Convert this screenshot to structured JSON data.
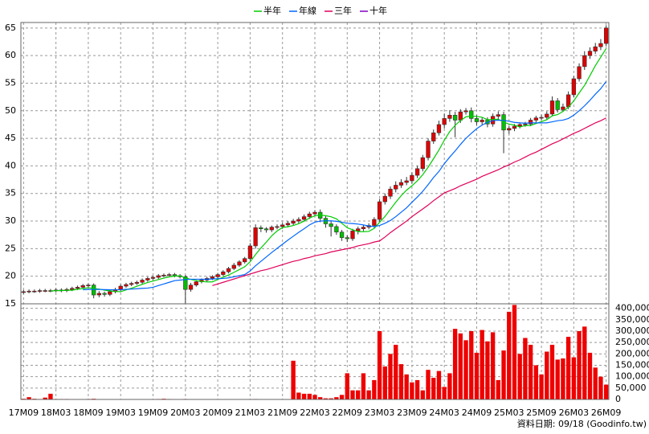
{
  "chart_data": {
    "type": "candlestick",
    "categories": [
      "17M09",
      null,
      null,
      null,
      null,
      null,
      "18M03",
      null,
      null,
      null,
      null,
      null,
      "18M09",
      null,
      null,
      null,
      null,
      null,
      "19M03",
      null,
      null,
      null,
      null,
      null,
      "19M09",
      null,
      null,
      null,
      null,
      null,
      "20M03",
      null,
      null,
      null,
      null,
      null,
      "20M09",
      null,
      null,
      null,
      null,
      null,
      "21M03",
      null,
      null,
      null,
      null,
      null,
      "21M09",
      null,
      null,
      null,
      null,
      null,
      "22M03",
      null,
      null,
      null,
      null,
      null,
      "22M09",
      null,
      null,
      null,
      null,
      null,
      "23M03",
      null,
      null,
      null,
      null,
      null,
      "23M09",
      null,
      null,
      null,
      null,
      null,
      "24M03",
      null,
      null,
      null,
      null,
      null,
      "24M09",
      null,
      null,
      null,
      null,
      null,
      "25M03",
      null,
      null,
      null,
      null,
      null,
      "25M09",
      null,
      null,
      null,
      null,
      null,
      "26M03",
      null,
      null,
      null,
      null,
      null,
      "26M09"
    ],
    "open": [
      17.1,
      17.2,
      17.3,
      17.3,
      17.4,
      17.4,
      17.4,
      17.5,
      17.4,
      17.6,
      17.8,
      18.0,
      18.3,
      18.4,
      16.6,
      16.9,
      16.7,
      17.2,
      17.6,
      18.2,
      18.5,
      18.7,
      18.9,
      19.3,
      19.6,
      19.8,
      20.1,
      20.2,
      20.3,
      20.1,
      19.9,
      17.6,
      18.4,
      19.0,
      19.3,
      19.6,
      19.9,
      20.3,
      20.8,
      21.4,
      22.0,
      22.6,
      23.2,
      25.5,
      28.8,
      28.6,
      28.4,
      28.9,
      29.0,
      29.3,
      29.6,
      30.0,
      30.3,
      30.8,
      31.3,
      31.6,
      30.5,
      29.5,
      29.0,
      28.0,
      27.0,
      26.8,
      28.2,
      28.6,
      28.9,
      29.2,
      30.3,
      33.5,
      34.5,
      35.8,
      36.5,
      37.0,
      37.3,
      38.3,
      39.5,
      41.5,
      44.5,
      46.0,
      47.5,
      48.6,
      49.2,
      48.3,
      49.8,
      50.0,
      48.6,
      48.0,
      48.3,
      47.6,
      49.0,
      49.3,
      46.5,
      46.8,
      47.2,
      47.5,
      47.6,
      48.3,
      48.7,
      48.8,
      49.4,
      51.8,
      50.2,
      50.7,
      52.9,
      55.8,
      58.0,
      60.0,
      60.8,
      61.6,
      62.2
    ],
    "high": [
      17.5,
      17.6,
      17.6,
      17.7,
      17.7,
      17.7,
      17.8,
      17.8,
      17.9,
      18.1,
      18.3,
      18.6,
      18.7,
      18.7,
      17.3,
      17.2,
      17.5,
      17.9,
      18.5,
      18.8,
      19.0,
      19.2,
      19.6,
      19.9,
      20.1,
      20.4,
      20.5,
      20.6,
      20.6,
      20.4,
      20.2,
      18.8,
      19.3,
      19.6,
      19.9,
      20.2,
      20.6,
      21.1,
      21.7,
      22.4,
      22.9,
      23.5,
      26.0,
      29.4,
      29.2,
      28.9,
      29.2,
      29.4,
      29.7,
      30.0,
      30.4,
      30.7,
      31.2,
      31.7,
      32.0,
      32.1,
      30.9,
      30.0,
      29.4,
      28.4,
      27.4,
      28.6,
      29.0,
      29.3,
      29.6,
      30.7,
      34.0,
      35.0,
      36.3,
      37.2,
      37.6,
      38.0,
      38.8,
      40.0,
      42.0,
      45.0,
      46.6,
      48.2,
      49.5,
      50.1,
      49.8,
      50.3,
      50.5,
      50.6,
      49.2,
      48.8,
      48.8,
      49.5,
      49.9,
      49.8,
      47.2,
      47.6,
      47.9,
      48.0,
      48.7,
      49.1,
      49.3,
      49.9,
      52.6,
      52.3,
      51.3,
      53.5,
      56.3,
      58.6,
      60.8,
      61.5,
      62.3,
      63.0,
      65.5
    ],
    "low": [
      16.8,
      16.9,
      17.0,
      17.0,
      17.1,
      17.1,
      17.1,
      17.1,
      17.1,
      17.3,
      17.5,
      17.7,
      18.0,
      16.0,
      16.2,
      16.3,
      16.4,
      16.9,
      17.3,
      17.9,
      18.2,
      18.4,
      18.6,
      19.0,
      19.3,
      19.5,
      19.8,
      19.9,
      19.8,
      19.6,
      15.1,
      17.2,
      18.1,
      18.7,
      19.0,
      19.3,
      19.6,
      20.0,
      20.5,
      21.1,
      21.7,
      22.3,
      22.9,
      25.0,
      28.0,
      27.9,
      28.0,
      28.5,
      28.6,
      28.9,
      29.2,
      29.6,
      29.9,
      30.4,
      30.9,
      29.8,
      28.8,
      27.2,
      27.5,
      26.4,
      26.2,
      26.4,
      27.6,
      28.2,
      28.5,
      28.8,
      29.9,
      33.0,
      34.0,
      35.2,
      36.0,
      36.5,
      36.8,
      37.8,
      39.0,
      41.0,
      44.0,
      45.5,
      46.8,
      48.0,
      45.2,
      47.8,
      49.3,
      47.9,
      47.4,
      47.5,
      47.0,
      47.1,
      48.5,
      42.3,
      45.8,
      46.3,
      46.8,
      47.1,
      47.2,
      47.9,
      48.3,
      48.4,
      49.0,
      49.7,
      49.8,
      50.3,
      52.4,
      55.3,
      57.4,
      59.4,
      60.3,
      61.0,
      61.7
    ],
    "close": [
      17.2,
      17.3,
      17.3,
      17.4,
      17.4,
      17.4,
      17.5,
      17.4,
      17.6,
      17.8,
      18.0,
      18.3,
      18.4,
      16.6,
      16.9,
      16.7,
      17.2,
      17.6,
      18.2,
      18.5,
      18.7,
      18.9,
      19.3,
      19.6,
      19.8,
      20.1,
      20.2,
      20.3,
      20.1,
      19.9,
      17.6,
      18.4,
      19.0,
      19.3,
      19.6,
      19.9,
      20.3,
      20.8,
      21.4,
      22.0,
      22.6,
      23.2,
      25.5,
      28.8,
      28.6,
      28.4,
      28.9,
      29.0,
      29.3,
      29.6,
      30.0,
      30.3,
      30.8,
      31.3,
      31.6,
      30.5,
      29.5,
      29.0,
      28.0,
      27.0,
      26.8,
      28.2,
      28.6,
      28.9,
      29.2,
      30.3,
      33.5,
      34.5,
      35.8,
      36.5,
      37.0,
      37.3,
      38.3,
      39.5,
      41.5,
      44.5,
      46.0,
      47.5,
      48.6,
      49.2,
      48.3,
      49.8,
      50.0,
      48.6,
      48.0,
      48.3,
      47.6,
      49.0,
      49.3,
      46.5,
      46.8,
      47.2,
      47.5,
      47.6,
      48.3,
      48.7,
      48.8,
      49.4,
      51.8,
      50.2,
      50.7,
      52.9,
      55.8,
      58.0,
      60.0,
      60.8,
      61.6,
      62.2,
      65.0
    ],
    "up_color": "#e00000",
    "down_color": "#00c000",
    "volume": [
      3000,
      10000,
      3000,
      2000,
      8000,
      25000,
      2000,
      2000,
      2000,
      1000,
      1000,
      1000,
      2000,
      3000,
      1000,
      1000,
      1000,
      1000,
      1000,
      1000,
      1000,
      1000,
      1000,
      1000,
      1000,
      2000,
      3000,
      2000,
      1000,
      1000,
      2000,
      1000,
      1000,
      1000,
      1000,
      1000,
      1000,
      1000,
      1000,
      1000,
      1000,
      1000,
      1000,
      2000,
      1000,
      1000,
      1000,
      1000,
      1000,
      1000,
      170000,
      30000,
      25000,
      25000,
      20000,
      10000,
      5000,
      5000,
      10000,
      20000,
      115000,
      40000,
      40000,
      115000,
      40000,
      85000,
      300000,
      145000,
      200000,
      240000,
      155000,
      110000,
      75000,
      85000,
      40000,
      130000,
      95000,
      125000,
      55000,
      115000,
      310000,
      290000,
      260000,
      300000,
      205000,
      305000,
      255000,
      295000,
      85000,
      215000,
      385000,
      415000,
      200000,
      270000,
      240000,
      150000,
      110000,
      210000,
      240000,
      175000,
      180000,
      275000,
      185000,
      300000,
      320000,
      205000,
      140000,
      100000,
      65000
    ],
    "volume_color": "#ee0000",
    "series": [
      {
        "name": "半年",
        "color": "#00cc00",
        "values": [
          null,
          null,
          null,
          null,
          null,
          17.33,
          17.38,
          17.4,
          17.43,
          17.48,
          17.62,
          17.77,
          17.92,
          17.78,
          17.67,
          17.48,
          17.35,
          17.23,
          17.2,
          17.52,
          17.82,
          18.18,
          18.53,
          18.87,
          19.13,
          19.4,
          19.65,
          19.88,
          20.02,
          20.07,
          19.7,
          19.42,
          19.22,
          19.05,
          18.97,
          18.97,
          19.42,
          19.82,
          20.22,
          20.7,
          21.2,
          21.72,
          22.62,
          23.92,
          25.12,
          26.18,
          27.33,
          28.2,
          28.83,
          28.97,
          29.2,
          29.52,
          29.98,
          30.55,
          30.97,
          31.08,
          30.97,
          30.78,
          30.4,
          29.6,
          28.8,
          28.42,
          28.1,
          28.08,
          28.12,
          28.67,
          29.78,
          30.83,
          32.13,
          33.42,
          34.6,
          35.6,
          36.4,
          37.3,
          38.4,
          39.77,
          41.3,
          42.88,
          44.67,
          46.22,
          47.35,
          48.23,
          48.9,
          49.05,
          48.98,
          48.82,
          48.38,
          48.42,
          48.47,
          47.95,
          47.58,
          47.4,
          47.05,
          47.32,
          47.33,
          47.68,
          48.02,
          48.38,
          49.08,
          49.3,
          49.88,
          50.63,
          51.8,
          53.23,
          54.6,
          56.37,
          58.18,
          59.73,
          61.27
        ]
      },
      {
        "name": "年線",
        "color": "#0066ff",
        "values": [
          null,
          null,
          null,
          null,
          null,
          null,
          null,
          null,
          null,
          null,
          null,
          17.55,
          17.6,
          17.6,
          17.6,
          17.57,
          17.55,
          17.52,
          17.56,
          17.62,
          17.67,
          17.73,
          17.8,
          17.85,
          18.0,
          18.3,
          18.6,
          18.9,
          19.2,
          19.3,
          19.4,
          19.45,
          19.45,
          19.45,
          19.45,
          19.5,
          19.55,
          19.6,
          19.7,
          19.9,
          20.1,
          20.3,
          20.95,
          21.9,
          22.7,
          23.5,
          24.3,
          25.05,
          25.8,
          26.55,
          27.25,
          27.95,
          28.6,
          29.3,
          29.8,
          30.0,
          30.05,
          30.05,
          29.95,
          29.8,
          29.6,
          29.55,
          29.45,
          29.3,
          29.1,
          29.0,
          29.2,
          29.6,
          30.1,
          30.8,
          31.6,
          32.4,
          33.4,
          34.35,
          35.4,
          36.6,
          37.9,
          39.0,
          40.4,
          41.6,
          42.7,
          43.9,
          45.0,
          45.9,
          46.75,
          47.4,
          47.9,
          48.2,
          48.3,
          48.25,
          48.1,
          47.9,
          47.8,
          47.75,
          47.8,
          47.8,
          47.8,
          47.8,
          48.0,
          48.2,
          48.3,
          48.6,
          49.2,
          50.0,
          50.9,
          51.9,
          53.0,
          54.0,
          55.3
        ]
      },
      {
        "name": "三年",
        "color": "#e0005a",
        "values": [
          null,
          null,
          null,
          null,
          null,
          null,
          null,
          null,
          null,
          null,
          null,
          null,
          null,
          null,
          null,
          null,
          null,
          null,
          null,
          null,
          null,
          null,
          null,
          null,
          null,
          null,
          null,
          null,
          null,
          null,
          null,
          null,
          null,
          null,
          null,
          18.3,
          18.6,
          18.9,
          19.2,
          19.5,
          19.8,
          20.1,
          20.4,
          20.7,
          21.0,
          21.2,
          21.5,
          21.8,
          22.1,
          22.4,
          22.7,
          22.9,
          23.2,
          23.4,
          23.7,
          23.9,
          24.1,
          24.4,
          24.6,
          24.8,
          25.0,
          25.2,
          25.5,
          25.7,
          25.9,
          26.2,
          26.4,
          27.1,
          27.9,
          28.6,
          29.3,
          30.0,
          30.8,
          31.5,
          32.2,
          32.9,
          33.7,
          34.4,
          35.1,
          35.5,
          35.9,
          36.4,
          36.8,
          37.2,
          37.6,
          38.1,
          38.5,
          38.9,
          39.3,
          39.8,
          40.2,
          40.7,
          41.1,
          41.6,
          42.1,
          42.5,
          43.0,
          43.5,
          44.0,
          44.4,
          44.9,
          45.4,
          45.9,
          46.3,
          46.8,
          47.3,
          47.8,
          48.2,
          48.7
        ]
      },
      {
        "name": "十年",
        "color": "#8000c0",
        "values": [
          null,
          null,
          null,
          null,
          null,
          null,
          null,
          null,
          null,
          null,
          null,
          null,
          null,
          null,
          null,
          null,
          null,
          null,
          null,
          null,
          null,
          null,
          null,
          null,
          null,
          null,
          null,
          null,
          null,
          null,
          null,
          null,
          null,
          null,
          null,
          null,
          null,
          null,
          null,
          null,
          null,
          null,
          null,
          null,
          null,
          null,
          null,
          null,
          null,
          null,
          null,
          null,
          null,
          null,
          null,
          null,
          null,
          null,
          null,
          null,
          null,
          null,
          null,
          null,
          null,
          null,
          null,
          null,
          null,
          null,
          null,
          null,
          null,
          null,
          null,
          null,
          null,
          null,
          null,
          null,
          null,
          null,
          null,
          null,
          null,
          null,
          null,
          null,
          null,
          null,
          null,
          null,
          null,
          null,
          null,
          null,
          null,
          null,
          null,
          null,
          null,
          null,
          null,
          null,
          null,
          null,
          null,
          null,
          null
        ]
      }
    ],
    "ylim": [
      15,
      66
    ],
    "yticks": [
      15,
      20,
      25,
      30,
      35,
      40,
      45,
      50,
      55,
      60,
      65
    ],
    "y2lim": [
      0,
      420000
    ],
    "y2ticks": [
      0,
      {
        "value": 50000,
        "label": "50,000"
      },
      {
        "value": 100000,
        "label": "100,000"
      },
      {
        "value": 150000,
        "label": "150,000"
      },
      {
        "value": 200000,
        "label": "200,000"
      },
      {
        "value": 250000,
        "label": "250,000"
      },
      {
        "value": 300000,
        "label": "300,000"
      },
      {
        "value": 350000,
        "label": "350,000"
      },
      {
        "value": 400000,
        "label": "400,000"
      }
    ],
    "grid": true,
    "legend": "top",
    "footnote": "資料日期: 09/18 (Goodinfo.tw)"
  }
}
